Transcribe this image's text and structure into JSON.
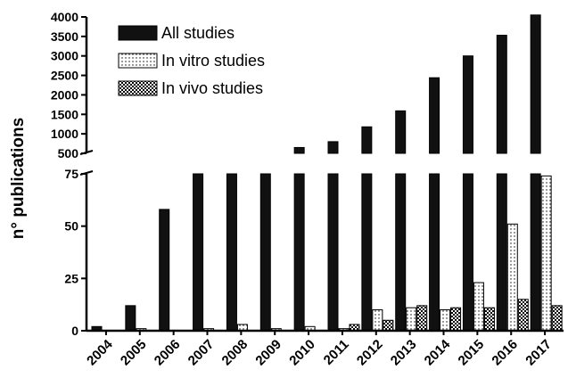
{
  "chart_data": {
    "type": "bar",
    "ylabel": "n° publications",
    "categories": [
      "2004",
      "2005",
      "2006",
      "2007",
      "2008",
      "2009",
      "2010",
      "2011",
      "2012",
      "2013",
      "2014",
      "2015",
      "2016",
      "2017"
    ],
    "series": [
      {
        "name": "All studies",
        "values": [
          2,
          12,
          58,
          120,
          200,
          300,
          650,
          800,
          1180,
          1590,
          2440,
          3000,
          3530,
          4050
        ],
        "color": "#111111",
        "pattern": "solid"
      },
      {
        "name": "In vitro studies",
        "values": [
          0,
          1,
          0,
          1,
          3,
          1,
          2,
          1,
          10,
          11,
          10,
          23,
          51,
          74
        ],
        "color": "#ffffff",
        "pattern": "dots"
      },
      {
        "name": "In vivo studies",
        "values": [
          0,
          0,
          0,
          0,
          0,
          0,
          0,
          3,
          5,
          12,
          11,
          11,
          15,
          12
        ],
        "color": "#888888",
        "pattern": "checker"
      }
    ],
    "axis_break": true,
    "lower_ylim": [
      0,
      75
    ],
    "lower_yticks": [
      "0",
      "25",
      "50",
      "75"
    ],
    "upper_ylim": [
      500,
      4000
    ],
    "upper_yticks": [
      "500",
      "1000",
      "1500",
      "2000",
      "2500",
      "3000",
      "3500",
      "4000"
    ],
    "legend_position": "top-left"
  }
}
